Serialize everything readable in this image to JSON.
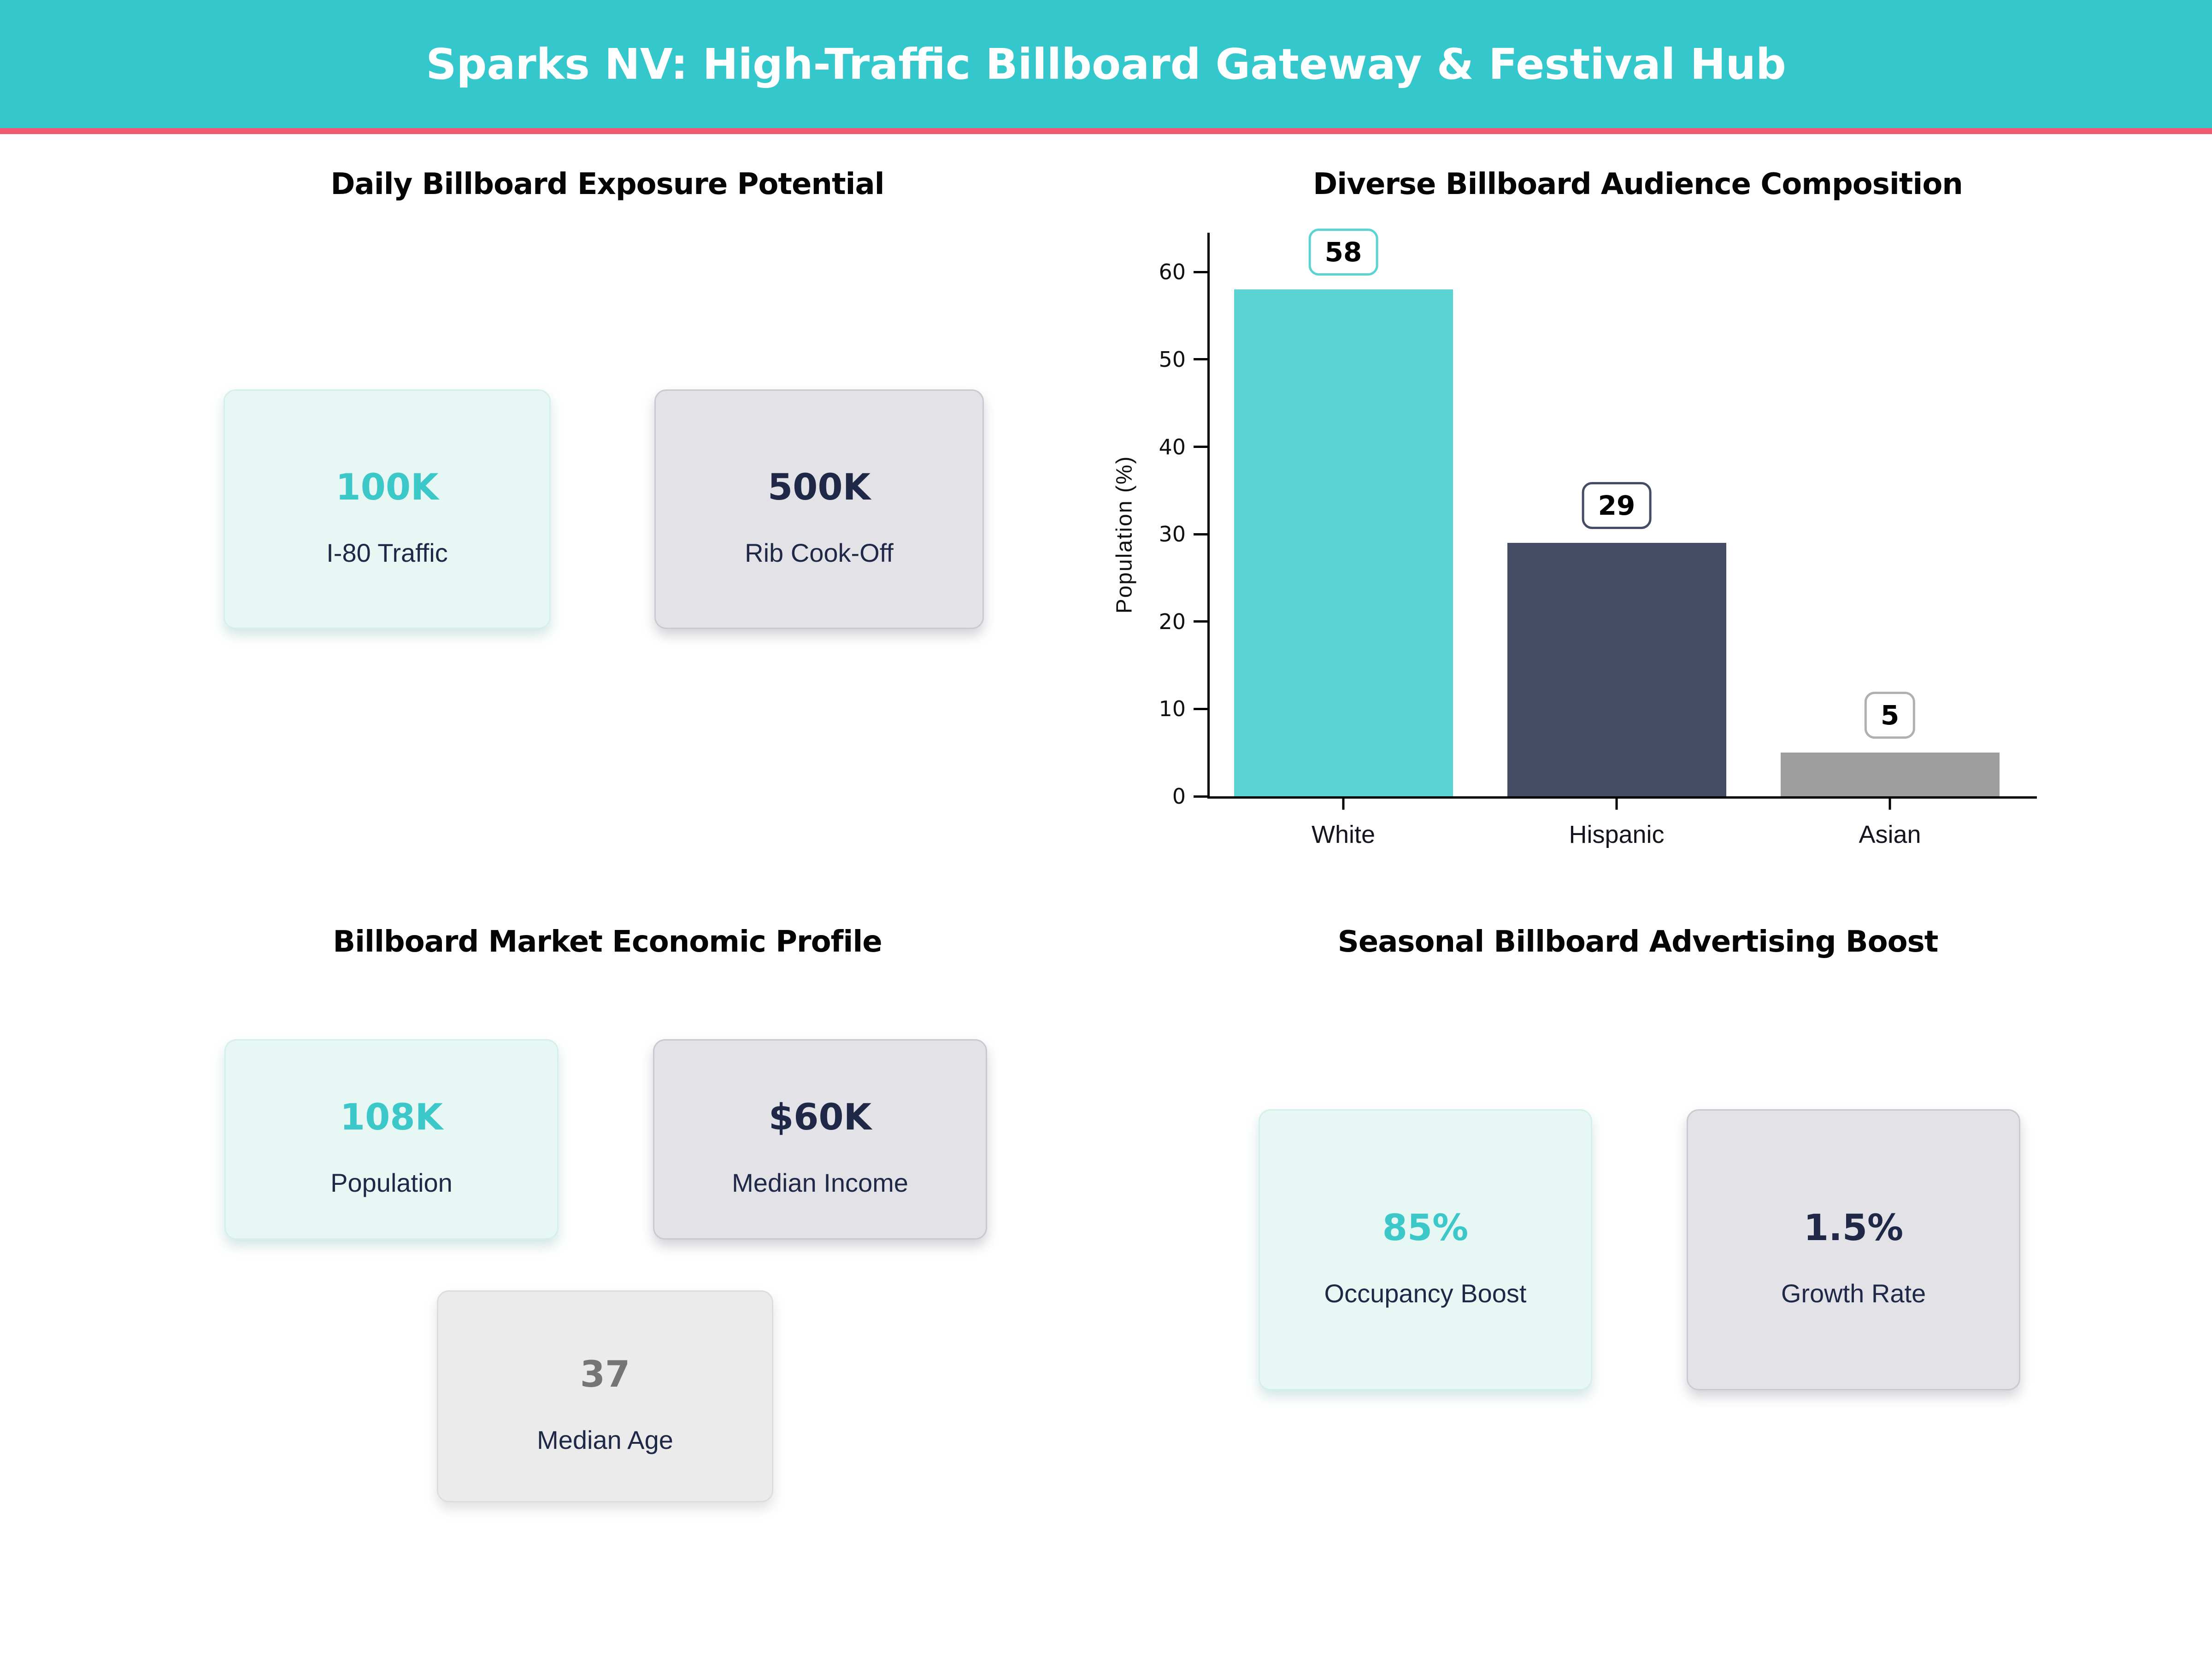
{
  "header": {
    "title": "Sparks NV: High-Traffic Billboard Gateway & Festival Hub",
    "bg_color": "#34c8cc",
    "accent_color": "#ef5a71"
  },
  "sections": {
    "exposure": {
      "title": "Daily Billboard Exposure Potential",
      "cards": [
        {
          "value": "100K",
          "label": "I-80 Traffic"
        },
        {
          "value": "500K",
          "label": "Rib Cook-Off"
        }
      ]
    },
    "audience": {
      "title": "Diverse Billboard Audience Composition"
    },
    "economic": {
      "title": "Billboard Market Economic Profile",
      "cards": [
        {
          "value": "108K",
          "label": "Population"
        },
        {
          "value": "$60K",
          "label": "Median Income"
        },
        {
          "value": "37",
          "label": "Median Age"
        }
      ]
    },
    "seasonal": {
      "title": "Seasonal Billboard Advertising Boost",
      "cards": [
        {
          "value": "85%",
          "label": "Occupancy Boost"
        },
        {
          "value": "1.5%",
          "label": "Growth Rate"
        }
      ]
    }
  },
  "chart_data": {
    "type": "bar",
    "title": "Diverse Billboard Audience Composition",
    "categories": [
      "White",
      "Hispanic",
      "Asian"
    ],
    "values": [
      58,
      29,
      5
    ],
    "data_labels": [
      "58",
      "29",
      "5"
    ],
    "bar_colors": [
      "#5bd3d3",
      "#454c66",
      "#9e9e9e"
    ],
    "label_box_border_colors": [
      "#5bd3d3",
      "#454c66",
      "#b0b0b0"
    ],
    "xlabel": "",
    "ylabel": "Population (%)",
    "yticks": [
      0,
      10,
      20,
      30,
      40,
      50,
      60
    ],
    "ylim": [
      0,
      64.5
    ],
    "grid": false,
    "legend_position": "none"
  },
  "colors": {
    "teal_value_text": "#3cc8c8",
    "navy_text": "#1f2947",
    "gray_value_text": "#757575",
    "axis": "#000000",
    "card_teal_bg": "#e7f7f4",
    "card_gray_bg": "#e2e2e7",
    "card_lightgray_bg": "#ebebeb"
  }
}
